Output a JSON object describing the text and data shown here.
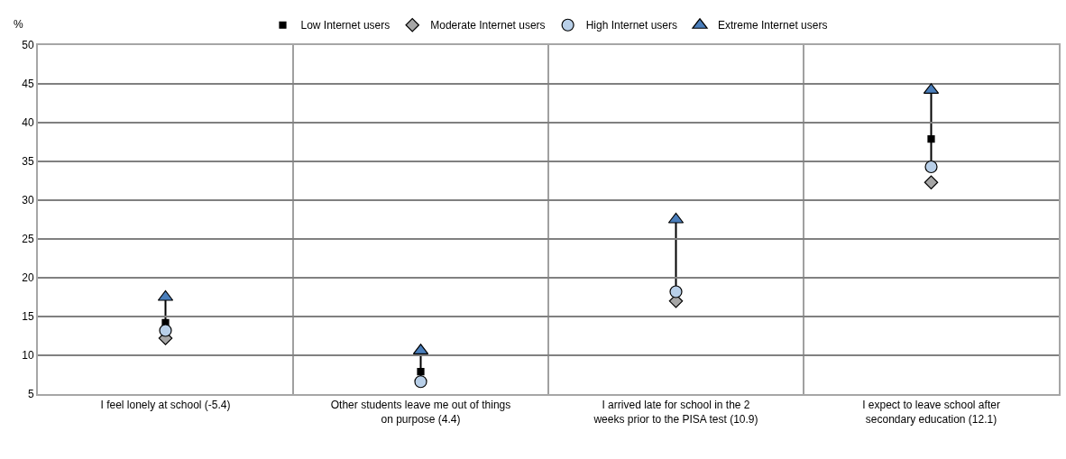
{
  "chart_data": {
    "type": "scatter",
    "ylabel": "%",
    "categories": [
      "I feel lonely at school (-5.4)",
      "Other students leave me out of things on purpose (4.4)",
      "I arrived late for school in the 2 weeks prior to the PISA test (10.9)",
      "I expect to leave school after secondary education (12.1)"
    ],
    "series": [
      {
        "name": "Low Internet users",
        "color": "#000000",
        "marker": "square",
        "values": [
          14.2,
          7.9,
          null,
          37.9
        ]
      },
      {
        "name": "Moderate Internet users",
        "color": "#a6a6a6",
        "marker": "diamond",
        "values": [
          12.2,
          null,
          17.0,
          32.3
        ]
      },
      {
        "name": "High Internet users",
        "color": "#b8cfe8",
        "marker": "circle",
        "values": [
          13.2,
          6.6,
          18.2,
          34.3
        ]
      },
      {
        "name": "Extreme Internet users",
        "color": "#4a7ebb",
        "marker": "triangle",
        "values": [
          17.5,
          10.6,
          27.5,
          44.2
        ]
      }
    ],
    "ylim": [
      5,
      50
    ],
    "yticks": [
      5,
      10,
      15,
      20,
      25,
      30,
      35,
      40,
      45,
      50
    ],
    "grid": true,
    "legend": "top"
  }
}
